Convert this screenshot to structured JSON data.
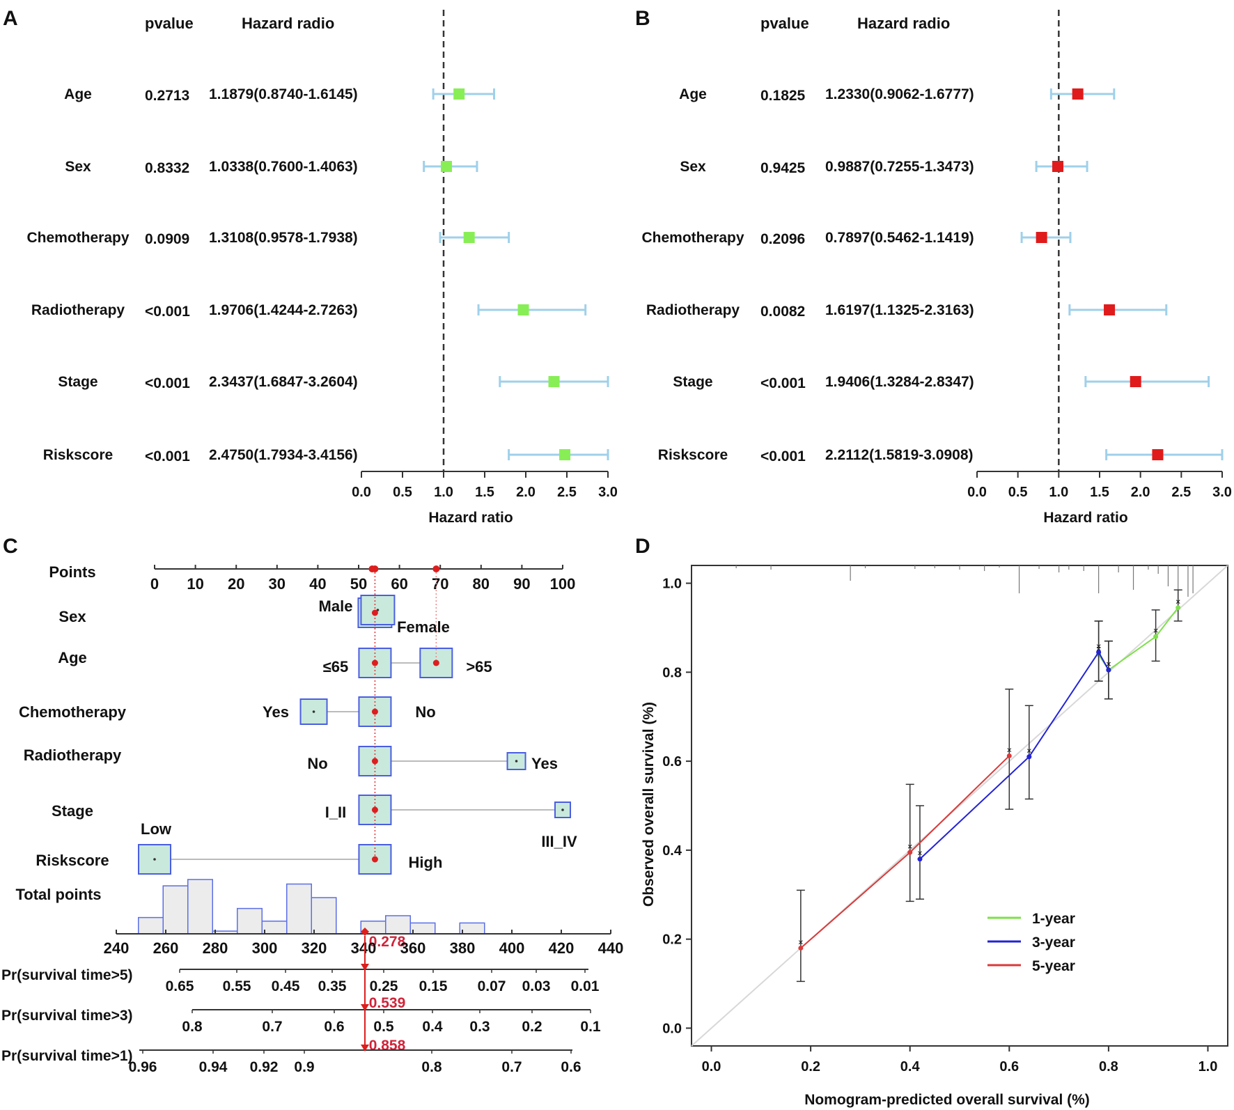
{
  "panels": {
    "a": "A",
    "b": "B",
    "c": "C",
    "d": "D"
  },
  "forest_common": {
    "header_pvalue": "pvalue",
    "header_hr": "Hazard radio",
    "xlabel": "Hazard ratio"
  },
  "nomogram": {
    "points_label": "Points",
    "total_label": "Total points",
    "sex": {
      "label": "Sex",
      "male": "Male",
      "female": "Female"
    },
    "age": {
      "label": "Age",
      "low": "≤65",
      "high": ">65"
    },
    "chemo": {
      "label": "Chemotherapy",
      "yes": "Yes",
      "no": "No"
    },
    "radio": {
      "label": "Radiotherapy",
      "no": "No",
      "yes": "Yes"
    },
    "stage": {
      "label": "Stage",
      "early": "I_II",
      "late": "III_IV"
    },
    "risk": {
      "label": "Riskscore",
      "low": "Low",
      "high": "High"
    },
    "pr5_label": "Pr(survival time>5)",
    "pr3_label": "Pr(survival time>3)",
    "pr1_label": "Pr(survival time>1)",
    "pr5_value": "0.278",
    "pr3_value": "0.539",
    "pr1_value": "0.858"
  },
  "chart_data": [
    {
      "type": "forest",
      "panel": "A",
      "xlabel": "Hazard ratio",
      "xlim": [
        0,
        3
      ],
      "xticks": [
        "0.0",
        "0.5",
        "1.0",
        "1.5",
        "2.0",
        "2.5",
        "3.0"
      ],
      "reference_line": 1.0,
      "marker_color": "#88ee55",
      "ci_color": "#9fd0ea",
      "rows": [
        {
          "label": "Age",
          "pvalue": "0.2713",
          "hr_text": "1.1879(0.8740-1.6145)",
          "hr": 1.1879,
          "lo": 0.874,
          "hi": 1.6145
        },
        {
          "label": "Sex",
          "pvalue": "0.8332",
          "hr_text": "1.0338(0.7600-1.4063)",
          "hr": 1.0338,
          "lo": 0.76,
          "hi": 1.4063
        },
        {
          "label": "Chemotherapy",
          "pvalue": "0.0909",
          "hr_text": "1.3108(0.9578-1.7938)",
          "hr": 1.3108,
          "lo": 0.9578,
          "hi": 1.7938
        },
        {
          "label": "Radiotherapy",
          "pvalue": "<0.001",
          "hr_text": "1.9706(1.4244-2.7263)",
          "hr": 1.9706,
          "lo": 1.4244,
          "hi": 2.7263
        },
        {
          "label": "Stage",
          "pvalue": "<0.001",
          "hr_text": "2.3437(1.6847-3.2604)",
          "hr": 2.3437,
          "lo": 1.6847,
          "hi": 3.2604
        },
        {
          "label": "Riskscore",
          "pvalue": "<0.001",
          "hr_text": "2.4750(1.7934-3.4156)",
          "hr": 2.475,
          "lo": 1.7934,
          "hi": 3.4156
        }
      ]
    },
    {
      "type": "forest",
      "panel": "B",
      "xlabel": "Hazard ratio",
      "xlim": [
        0,
        3
      ],
      "xticks": [
        "0.0",
        "0.5",
        "1.0",
        "1.5",
        "2.0",
        "2.5",
        "3.0"
      ],
      "reference_line": 1.0,
      "marker_color": "#e01b1b",
      "ci_color": "#9fd0ea",
      "rows": [
        {
          "label": "Age",
          "pvalue": "0.1825",
          "hr_text": "1.2330(0.9062-1.6777)",
          "hr": 1.233,
          "lo": 0.9062,
          "hi": 1.6777
        },
        {
          "label": "Sex",
          "pvalue": "0.9425",
          "hr_text": "0.9887(0.7255-1.3473)",
          "hr": 0.9887,
          "lo": 0.7255,
          "hi": 1.3473
        },
        {
          "label": "Chemotherapy",
          "pvalue": "0.2096",
          "hr_text": "0.7897(0.5462-1.1419)",
          "hr": 0.7897,
          "lo": 0.5462,
          "hi": 1.1419
        },
        {
          "label": "Radiotherapy",
          "pvalue": "0.0082",
          "hr_text": "1.6197(1.1325-2.3163)",
          "hr": 1.6197,
          "lo": 1.1325,
          "hi": 2.3163
        },
        {
          "label": "Stage",
          "pvalue": "<0.001",
          "hr_text": "1.9406(1.3284-2.8347)",
          "hr": 1.9406,
          "lo": 1.3284,
          "hi": 2.8347
        },
        {
          "label": "Riskscore",
          "pvalue": "<0.001",
          "hr_text": "2.2112(1.5819-3.0908)",
          "hr": 2.2112,
          "lo": 1.5819,
          "hi": 3.0908
        }
      ]
    },
    {
      "type": "nomogram",
      "panel": "C",
      "points_ticks": [
        "0",
        "10",
        "20",
        "30",
        "40",
        "50",
        "60",
        "70",
        "80",
        "90",
        "100"
      ],
      "total_ticks": [
        "240",
        "260",
        "280",
        "300",
        "320",
        "340",
        "360",
        "380",
        "400",
        "420",
        "440"
      ],
      "pr5_ticks": [
        "0.65",
        "0.55",
        "0.45",
        "0.35",
        "0.25",
        "0.15",
        "0.07",
        "0.03",
        "0.01"
      ],
      "pr3_ticks": [
        "0.8",
        "0.7",
        "0.6",
        "0.5",
        "0.4",
        "0.3",
        "0.2",
        "0.1"
      ],
      "pr1_ticks": [
        "0.96",
        "0.94",
        "0.92",
        "0.9",
        "0.8",
        "0.7",
        "0.6"
      ],
      "variable_points": {
        "Sex": {
          "Male": 54,
          "Female": 54
        },
        "Age": {
          "≤65": 54,
          ">65": 69
        },
        "Chemotherapy": {
          "Yes": 39,
          "No": 54
        },
        "Radiotherapy": {
          "No": 54,
          "Yes": 89
        },
        "Stage": {
          "I_II": 54,
          "III_IV": 100
        },
        "Riskscore": {
          "Low": 0,
          "High": 54
        }
      },
      "selected_points": [
        54,
        69
      ],
      "selected_total": 340,
      "histogram": {
        "bins": [
          250,
          260,
          270,
          280,
          290,
          300,
          310,
          320,
          330,
          340,
          350,
          360,
          370,
          380,
          390,
          400,
          410,
          420
        ],
        "heights": [
          0.18,
          0.53,
          0.6,
          0.03,
          0.28,
          0.14,
          0.55,
          0.4,
          0.0,
          0.14,
          0.2,
          0.12,
          0.0,
          0.12,
          0.0,
          0.0,
          0.0,
          0.0
        ]
      },
      "results": {
        "pr5": 0.278,
        "pr3": 0.539,
        "pr1": 0.858
      }
    },
    {
      "type": "line",
      "panel": "D",
      "xlabel": "Nomogram-predicted overall survival (%)",
      "ylabel": "Observed overall survival (%)",
      "xlim": [
        -0.04,
        1.04
      ],
      "ylim": [
        -0.04,
        1.04
      ],
      "xticks": [
        "0.0",
        "0.2",
        "0.4",
        "0.6",
        "0.8",
        "1.0"
      ],
      "yticks": [
        "0.0",
        "0.2",
        "0.4",
        "0.6",
        "0.8",
        "1.0"
      ],
      "legend_position": "lower-right",
      "reference_line": "diagonal",
      "series": [
        {
          "name": "1-year",
          "color": "#7ee04a",
          "x": [
            0.78,
            0.8,
            0.895,
            0.94
          ],
          "y": [
            0.84,
            0.805,
            0.88,
            0.945
          ],
          "err_lo": [
            0.78,
            0.74,
            0.825,
            0.915
          ],
          "err_hi": [
            0.915,
            0.87,
            0.94,
            0.985
          ]
        },
        {
          "name": "3-year",
          "color": "#2323d6",
          "x": [
            0.42,
            0.64,
            0.78,
            0.8
          ],
          "y": [
            0.38,
            0.61,
            0.845,
            0.805
          ],
          "err_lo": [
            0.29,
            0.515,
            0.78,
            0.74
          ],
          "err_hi": [
            0.5,
            0.725,
            0.915,
            0.87
          ]
        },
        {
          "name": "5-year",
          "color": "#d93a3a",
          "x": [
            0.18,
            0.4,
            0.6
          ],
          "y": [
            0.18,
            0.395,
            0.612
          ],
          "err_lo": [
            0.105,
            0.285,
            0.492
          ],
          "err_hi": [
            0.31,
            0.548,
            0.762
          ]
        }
      ]
    }
  ]
}
